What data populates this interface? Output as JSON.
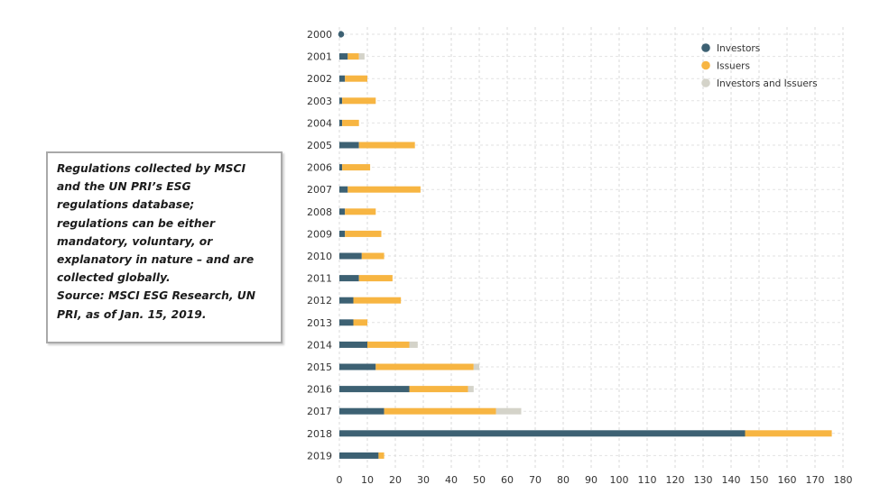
{
  "note": {
    "lines": [
      "Regulations collected by MSCI",
      "and the UN PRI’s ESG",
      "regulations database;",
      "regulations can be either",
      "mandatory, voluntary, or",
      "explanatory in nature – and are",
      "collected globally.",
      "Source: MSCI ESG Research, UN",
      "PRI, as of Jan. 15, 2019."
    ]
  },
  "chart_data": {
    "type": "bar",
    "orientation": "horizontal",
    "stacked": true,
    "categories": [
      "2000",
      "2001",
      "2002",
      "2003",
      "2004",
      "2005",
      "2006",
      "2007",
      "2008",
      "2009",
      "2010",
      "2011",
      "2012",
      "2013",
      "2014",
      "2015",
      "2016",
      "2017",
      "2018",
      "2019"
    ],
    "series": [
      {
        "name": "Investors",
        "color": "#3d6173",
        "values": [
          1,
          3,
          2,
          1,
          1,
          7,
          1,
          3,
          2,
          2,
          8,
          7,
          5,
          5,
          10,
          13,
          25,
          16,
          145,
          14
        ]
      },
      {
        "name": "Issuers",
        "color": "#f7b542",
        "values": [
          0,
          4,
          8,
          12,
          6,
          20,
          10,
          26,
          11,
          13,
          8,
          12,
          17,
          5,
          15,
          35,
          21,
          40,
          31,
          2
        ]
      },
      {
        "name": "Investors and Issuers",
        "color": "#d4d3c9",
        "values": [
          0,
          2,
          0,
          0,
          0,
          0,
          0,
          0,
          0,
          0,
          0,
          0,
          0,
          0,
          3,
          2,
          2,
          9,
          0,
          0
        ]
      }
    ],
    "xticks": [
      "0",
      "10",
      "20",
      "30",
      "40",
      "50",
      "60",
      "70",
      "80",
      "90",
      "100",
      "110",
      "120",
      "130",
      "140",
      "150",
      "160",
      "170",
      "180"
    ],
    "xlim": [
      0,
      180
    ],
    "grid": true,
    "legend_position": "top-right",
    "title": "",
    "xlabel": "",
    "ylabel": ""
  }
}
